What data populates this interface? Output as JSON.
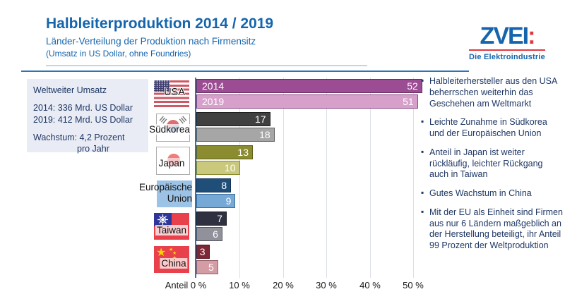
{
  "header": {
    "title": "Halbleiterproduktion 2014 / 2019",
    "subtitle": "Länder-Verteilung der Produktion nach Firmensitz",
    "note": "(Umsatz in US Dollar, ohne Foundries)"
  },
  "logo": {
    "wordmark": "ZVEI",
    "colon": ":",
    "tagline": "Die Elektroindustrie"
  },
  "info_box": {
    "line1": "Weltweiter Umsatz",
    "line2": "2014: 336 Mrd. US Dollar",
    "line3": "2019: 412 Mrd. US Dollar",
    "line4": "Wachstum: 4,2 Prozent",
    "line5": "pro Jahr"
  },
  "chart_data": {
    "type": "bar",
    "orientation": "horizontal",
    "title": "Halbleiterproduktion 2014 / 2019",
    "xlabel": "Anteil",
    "unit": "%",
    "categories": [
      "USA",
      "Südkorea",
      "Japan",
      "Europäische Union",
      "Taiwan",
      "China"
    ],
    "series": [
      {
        "name": "2014",
        "values": [
          52,
          17,
          13,
          8,
          7,
          3
        ],
        "fills": [
          "#9C4C92",
          "#404040",
          "#8B8C2F",
          "#1F4E79",
          "#2F3040",
          "#7E2735"
        ],
        "borders": [
          "#63305C",
          "#1F1F1F",
          "#5C5D1E",
          "#133155",
          "#15161F",
          "#4F131E"
        ]
      },
      {
        "name": "2019",
        "values": [
          51,
          18,
          10,
          9,
          6,
          5
        ],
        "fills": [
          "#D7A0CB",
          "#A6A6A6",
          "#C9C87D",
          "#76A9D6",
          "#90919A",
          "#D49CA5"
        ],
        "borders": [
          "#8A4380",
          "#5E5E5E",
          "#8B8C2F",
          "#3D6E9E",
          "#54545E",
          "#96606A"
        ]
      }
    ],
    "x_ticks": [
      "Anteil 0 %",
      "10 %",
      "20 %",
      "30 %",
      "40 %",
      "50 %"
    ],
    "xlim": [
      0,
      56
    ],
    "grid": true,
    "value_labels": "white, inside bar end",
    "legend": "series names 2014/2019 shown inside USA bars"
  },
  "bullets": [
    "Halbleiterhersteller aus den USA beherrschen weiterhin das Geschehen am Weltmarkt",
    "Leichte Zunahme in Südkorea und der Europäischen Union",
    "Anteil in Japan ist weiter rückläufig, leichter Rückgang auch in Taiwan",
    "Gutes Wachstum in China",
    "Mit der EU als Einheit sind Firmen aus nur 6 Ländern maßgeblich an der Herstellung beteiligt, ihr Anteil 99 Prozent der Weltproduktion"
  ]
}
